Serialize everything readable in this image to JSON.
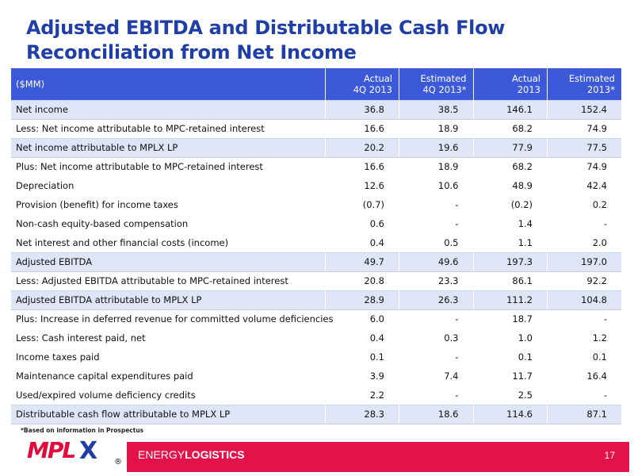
{
  "title_line1": "Adjusted EBITDA and Distributable Cash Flow",
  "title_line2": "Reconciliation from Net Income",
  "table": {
    "header": {
      "label": "($MM)",
      "columns": [
        {
          "line1": "Actual",
          "line2": "4Q 2013"
        },
        {
          "line1": "Estimated",
          "line2": "4Q 2013*"
        },
        {
          "line1": "Actual",
          "line2": "2013"
        },
        {
          "line1": "Estimated",
          "line2": "2013*"
        }
      ]
    },
    "rows": [
      {
        "label": "Net income",
        "values": [
          "36.8",
          "38.5",
          "146.1",
          "152.4"
        ]
      },
      {
        "label": "Less:  Net income attributable to MPC-retained interest",
        "values": [
          "16.6",
          "18.9",
          "68.2",
          "74.9"
        ]
      },
      {
        "label": "Net income attributable to MPLX LP",
        "values": [
          "20.2",
          "19.6",
          "77.9",
          "77.5"
        ]
      },
      {
        "label": "Plus:  Net income attributable to MPC-retained interest",
        "values": [
          "16.6",
          "18.9",
          "68.2",
          "74.9"
        ]
      },
      {
        "label": "Depreciation",
        "values": [
          "12.6",
          "10.6",
          "48.9",
          "42.4"
        ]
      },
      {
        "label": "Provision (benefit) for income taxes",
        "values": [
          "(0.7)",
          "-",
          "(0.2)",
          "0.2"
        ]
      },
      {
        "label": "Non-cash equity-based compensation",
        "values": [
          "0.6",
          "-",
          "1.4",
          "-"
        ]
      },
      {
        "label": "Net interest and other financial costs (income)",
        "values": [
          "0.4",
          "0.5",
          "1.1",
          "2.0"
        ]
      },
      {
        "label": "Adjusted EBITDA",
        "values": [
          "49.7",
          "49.6",
          "197.3",
          "197.0"
        ]
      },
      {
        "label": "Less:  Adjusted EBITDA attributable to MPC-retained interest",
        "values": [
          "20.8",
          "23.3",
          "86.1",
          "92.2"
        ]
      },
      {
        "label": "Adjusted EBITDA attributable to MPLX LP",
        "values": [
          "28.9",
          "26.3",
          "111.2",
          "104.8"
        ]
      },
      {
        "label": "Plus:  Increase in deferred revenue for committed volume deficiencies",
        "values": [
          "6.0",
          "-",
          "18.7",
          "-"
        ]
      },
      {
        "label": "Less:  Cash interest paid, net",
        "values": [
          "0.4",
          "0.3",
          "1.0",
          "1.2"
        ]
      },
      {
        "label": "Income taxes paid",
        "values": [
          "0.1",
          "-",
          "0.1",
          "0.1"
        ]
      },
      {
        "label": "Maintenance capital expenditures paid",
        "values": [
          "3.9",
          "7.4",
          "11.7",
          "16.4"
        ]
      },
      {
        "label": "Used/expired volume deficiency credits",
        "values": [
          "2.2",
          "-",
          "2.5",
          "-"
        ]
      },
      {
        "label": "Distributable cash flow attributable to MPLX LP",
        "values": [
          "28.3",
          "18.6",
          "114.6",
          "87.1"
        ]
      }
    ]
  },
  "footnote": "*Based on information in Prospectus",
  "footer": {
    "logo_text": "MPL",
    "logo_x": "X",
    "logo_reg": "®",
    "tagline_light": "ENERGY",
    "tagline_bold": "LOGISTICS",
    "page_number": "17"
  },
  "colors": {
    "title": "#1f3fa6",
    "header_bg": "#3b59d9",
    "band_bg": "#dfe5f7",
    "footer_bar": "#e3124b"
  }
}
